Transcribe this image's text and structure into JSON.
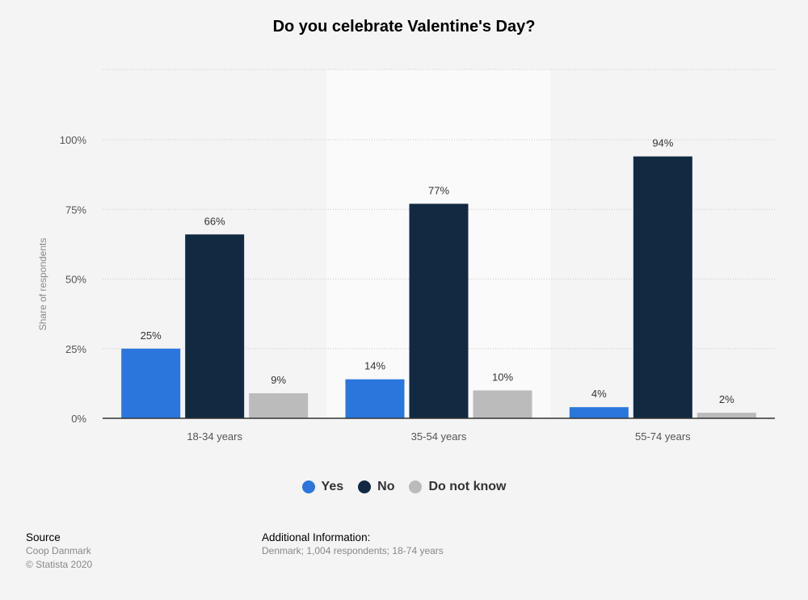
{
  "title": "Do you celebrate Valentine's Day?",
  "chart_data": {
    "type": "bar",
    "categories": [
      "18-34 years",
      "35-54 years",
      "55-74 years"
    ],
    "series": [
      {
        "name": "Yes",
        "values": [
          25,
          14,
          4
        ],
        "labels": [
          "25%",
          "14%",
          "4%"
        ],
        "color": "#2a76dd"
      },
      {
        "name": "No",
        "values": [
          66,
          77,
          94
        ],
        "labels": [
          "66%",
          "77%",
          "94%"
        ],
        "color": "#112a42"
      },
      {
        "name": "Do not know",
        "values": [
          9,
          10,
          2
        ],
        "labels": [
          "9%",
          "10%",
          "2%"
        ],
        "color": "#bbbbbb"
      }
    ],
    "ylabel": "Share of respondents",
    "ylim": [
      0,
      100
    ],
    "yticks": [
      0,
      25,
      50,
      75,
      100
    ],
    "ytick_labels": [
      "0%",
      "25%",
      "50%",
      "75%",
      "100%"
    ],
    "grid": true,
    "legend_position": "bottom"
  },
  "footer": {
    "source_heading": "Source",
    "source_lines": [
      "Coop Danmark",
      "© Statista 2020"
    ],
    "info_heading": "Additional Information:",
    "info_text": "Denmark; 1,004 respondents; 18-74 years"
  }
}
